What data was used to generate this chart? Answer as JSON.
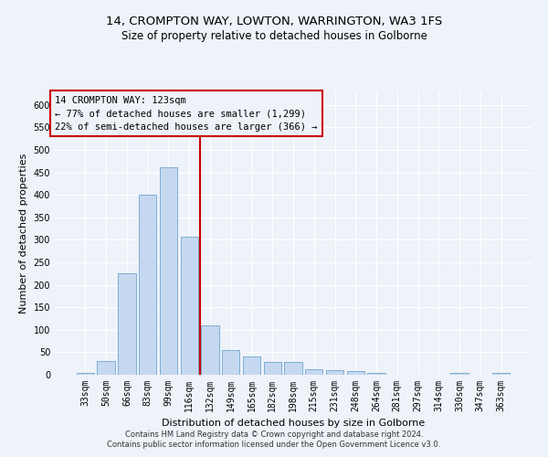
{
  "title1": "14, CROMPTON WAY, LOWTON, WARRINGTON, WA3 1FS",
  "title2": "Size of property relative to detached houses in Golborne",
  "xlabel": "Distribution of detached houses by size in Golborne",
  "ylabel": "Number of detached properties",
  "categories": [
    "33sqm",
    "50sqm",
    "66sqm",
    "83sqm",
    "99sqm",
    "116sqm",
    "132sqm",
    "149sqm",
    "165sqm",
    "182sqm",
    "198sqm",
    "215sqm",
    "231sqm",
    "248sqm",
    "264sqm",
    "281sqm",
    "297sqm",
    "314sqm",
    "330sqm",
    "347sqm",
    "363sqm"
  ],
  "values": [
    5,
    30,
    225,
    400,
    462,
    307,
    110,
    55,
    40,
    28,
    28,
    13,
    10,
    8,
    5,
    0,
    0,
    0,
    5,
    0,
    4
  ],
  "bar_color": "#c5d8f0",
  "bar_edge_color": "#7bafd4",
  "vline_x_index": 5.5,
  "vline_color": "#cc0000",
  "annotation_lines": [
    "14 CROMPTON WAY: 123sqm",
    "← 77% of detached houses are smaller (1,299)",
    "22% of semi-detached houses are larger (366) →"
  ],
  "annotation_box_color": "#cc0000",
  "ylim": [
    0,
    630
  ],
  "yticks": [
    0,
    50,
    100,
    150,
    200,
    250,
    300,
    350,
    400,
    450,
    500,
    550,
    600
  ],
  "footer1": "Contains HM Land Registry data © Crown copyright and database right 2024.",
  "footer2": "Contains public sector information licensed under the Open Government Licence v3.0.",
  "bg_color": "#eef2f9",
  "grid_color": "#ffffff",
  "title1_fontsize": 9.5,
  "title2_fontsize": 8.5,
  "tick_fontsize": 7,
  "ylabel_fontsize": 8,
  "xlabel_fontsize": 8,
  "footer_fontsize": 6,
  "annotation_fontsize": 7.5
}
